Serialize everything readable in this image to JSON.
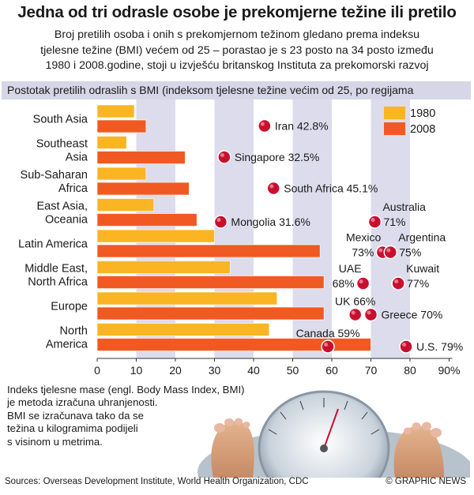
{
  "header": {
    "title": "Jedna od tri odrasle osobe je prekomjerne težine ili pretilo",
    "subtitle_lines": [
      "Broj pretilih osoba i onih s prekomjernom težinom gledano prema indeksu",
      "tjelesne težine (BMI) većem od 25 – porastao je s 23 posto na 34 posto između",
      "1980 i 2008.godine, stoji u izvješću britanskog Instituta za prekomorski razvoj"
    ]
  },
  "chart_data": {
    "type": "bar",
    "orientation": "horizontal",
    "title": "Postotak pretilih odraslih s BMI (indeksom tjelesne težine većim od 25, po regijama",
    "categories": [
      [
        "South Asia"
      ],
      [
        "Southeast",
        "Asia"
      ],
      [
        "Sub-Saharan",
        "Africa"
      ],
      [
        "East Asia,",
        "Oceania"
      ],
      [
        "Latin America"
      ],
      [
        "Middle East,",
        "North Africa"
      ],
      [
        "Europe"
      ],
      [
        "North",
        "America"
      ]
    ],
    "series": [
      {
        "name": "1980",
        "color": "#fbb522",
        "values": [
          9.5,
          7.5,
          12.5,
          14.5,
          30,
          34,
          46,
          44
        ]
      },
      {
        "name": "2008",
        "color": "#f05a22",
        "values": [
          12.5,
          22.5,
          23.5,
          25.5,
          57,
          58,
          58,
          70
        ]
      }
    ],
    "xlim": [
      0,
      90
    ],
    "xticks": [
      "0",
      "10",
      "20",
      "30",
      "40",
      "50",
      "60",
      "70",
      "80",
      "90%"
    ],
    "legend": "top-right",
    "dot_color": "#c8102e",
    "annotations": [
      {
        "text": "Iran 42.8%",
        "value": 42.8,
        "row": 0,
        "label_lines": [
          "Iran 42.8%"
        ],
        "label_pos": "right"
      },
      {
        "text": "Singapore 32.5%",
        "value": 32.5,
        "row": 1,
        "label_lines": [
          "Singapore 32.5%"
        ],
        "label_pos": "right"
      },
      {
        "text": "South Africa 45.1%",
        "value": 45.1,
        "row": 2,
        "label_lines": [
          "South Africa 45.1%"
        ],
        "label_pos": "right"
      },
      {
        "text": "Mongolia 31.6%",
        "value": 31.6,
        "row": 3,
        "label_lines": [
          "Mongolia 31.6%"
        ],
        "label_pos": "right"
      },
      {
        "text": "Australia 71%",
        "value": 71,
        "row": 3,
        "label_lines": [
          "Australia",
          "71%"
        ],
        "label_pos": "right-stack"
      },
      {
        "text": "Mexico 73%",
        "value": 73,
        "row": 4,
        "label_lines": [
          "Mexico",
          "73%"
        ],
        "label_pos": "left-stack"
      },
      {
        "text": "Argentina 75%",
        "value": 75,
        "row": 4,
        "label_lines": [
          "Argentina",
          "75%"
        ],
        "label_pos": "right-stack"
      },
      {
        "text": "UAE 68%",
        "value": 68,
        "row": 5,
        "label_lines": [
          "UAE",
          "68%"
        ],
        "label_pos": "left-stack"
      },
      {
        "text": "Kuwait 77%",
        "value": 77,
        "row": 5,
        "label_lines": [
          "Kuwait",
          "77%"
        ],
        "label_pos": "right-stack"
      },
      {
        "text": "UK 66%",
        "value": 66,
        "row": 6,
        "label_lines": [
          "UK 66%"
        ],
        "label_pos": "above"
      },
      {
        "text": "Greece 70%",
        "value": 70,
        "row": 6,
        "label_lines": [
          "Greece 70%"
        ],
        "label_pos": "right"
      },
      {
        "text": "Canada 59%",
        "value": 59,
        "row": 7,
        "label_lines": [
          "Canada 59%"
        ],
        "label_pos": "above"
      },
      {
        "text": "U.S. 79%",
        "value": 79,
        "row": 7,
        "label_lines": [
          "U.S. 79%"
        ],
        "label_pos": "right"
      }
    ]
  },
  "note": {
    "lines": [
      "Indeks tjelesne mase (engl. Body Mass Index, BMI)",
      "je metoda izračuna uhranjenosti.",
      "BMI se izračunava tako da se",
      "težina u kilogramima podijeli",
      "s visinom u metrima."
    ]
  },
  "footer": {
    "sources": "Sources: Overseas Development Institute, World Health Organization, CDC",
    "credit": "© GRAPHIC NEWS"
  },
  "colors": {
    "band": "#d6d6e6",
    "stripe": "#dcdcec",
    "bar_1980": "#fbb522",
    "bar_2008": "#f05a22",
    "dot": "#c8102e"
  }
}
